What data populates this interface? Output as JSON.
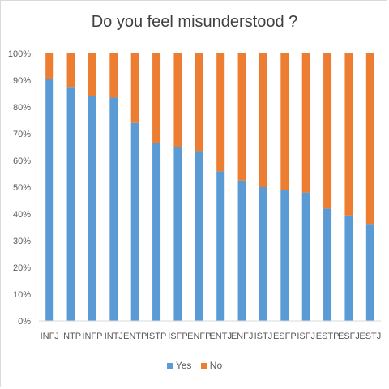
{
  "chart_data": {
    "type": "bar",
    "stacked": true,
    "title": "Do you feel misunderstood ?",
    "categories": [
      "INFJ",
      "INTP",
      "INFP",
      "INTJ",
      "ENTP",
      "ISTP",
      "ISFP",
      "ENFP",
      "ENTJ",
      "ENFJ",
      "ISTJ",
      "ESFP",
      "ISFJ",
      "ESTP",
      "ESFJ",
      "ESTJ"
    ],
    "series": [
      {
        "name": "Yes",
        "color": "#5b9bd5",
        "values": [
          90.5,
          87.5,
          84,
          83.5,
          74,
          66.5,
          65,
          63.5,
          56,
          52.5,
          50,
          49,
          48,
          42,
          39.5,
          36
        ]
      },
      {
        "name": "No",
        "color": "#ed7d31",
        "values": [
          9.5,
          12.5,
          16,
          16.5,
          26,
          33.5,
          35,
          36.5,
          44,
          47.5,
          50,
          51,
          52,
          58,
          60.5,
          64
        ]
      }
    ],
    "ylim": [
      0,
      100
    ],
    "yticks": [
      "0%",
      "10%",
      "20%",
      "30%",
      "40%",
      "50%",
      "60%",
      "70%",
      "80%",
      "90%",
      "100%"
    ],
    "grid": false,
    "legend": "bottom"
  }
}
